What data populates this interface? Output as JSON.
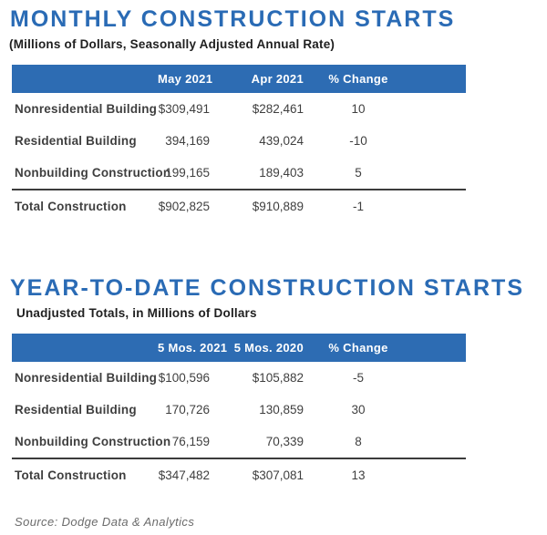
{
  "colors": {
    "header_band_blue": "#2d6cb3",
    "title_blue": "#2a6bb5",
    "row_text_dark": "#3f3f3f",
    "total_rule_dark": "#3c3c3c",
    "source_gray": "#6b6b6b"
  },
  "source_note": "Source: Dodge Data & Analytics",
  "chart_data": [
    {
      "type": "table",
      "title": "MONTHLY CONSTRUCTION STARTS",
      "subtitle": "(Millions of Dollars, Seasonally Adjusted Annual Rate)",
      "columns": [
        "",
        "May 2021",
        "Apr 2021",
        "% Change"
      ],
      "rows": [
        [
          "Nonresidential Building",
          "$309,491",
          "$282,461",
          "10"
        ],
        [
          "Residential Building",
          "394,169",
          "439,024",
          "-10"
        ],
        [
          "Nonbuilding Construction",
          "199,165",
          "189,403",
          "5"
        ],
        [
          "Total Construction",
          "$902,825",
          "$910,889",
          "-1"
        ]
      ]
    },
    {
      "type": "table",
      "title": "YEAR-TO-DATE CONSTRUCTION STARTS",
      "subtitle": "Unadjusted Totals, in Millions of Dollars",
      "columns": [
        "",
        "5 Mos. 2021",
        "5 Mos. 2020",
        "% Change"
      ],
      "rows": [
        [
          "Nonresidential Building",
          "$100,596",
          "$105,882",
          "-5"
        ],
        [
          "Residential Building",
          "170,726",
          "130,859",
          "30"
        ],
        [
          "Nonbuilding Construction",
          "76,159",
          "70,339",
          "8"
        ],
        [
          "Total Construction",
          "$347,482",
          "$307,081",
          "13"
        ]
      ]
    }
  ]
}
